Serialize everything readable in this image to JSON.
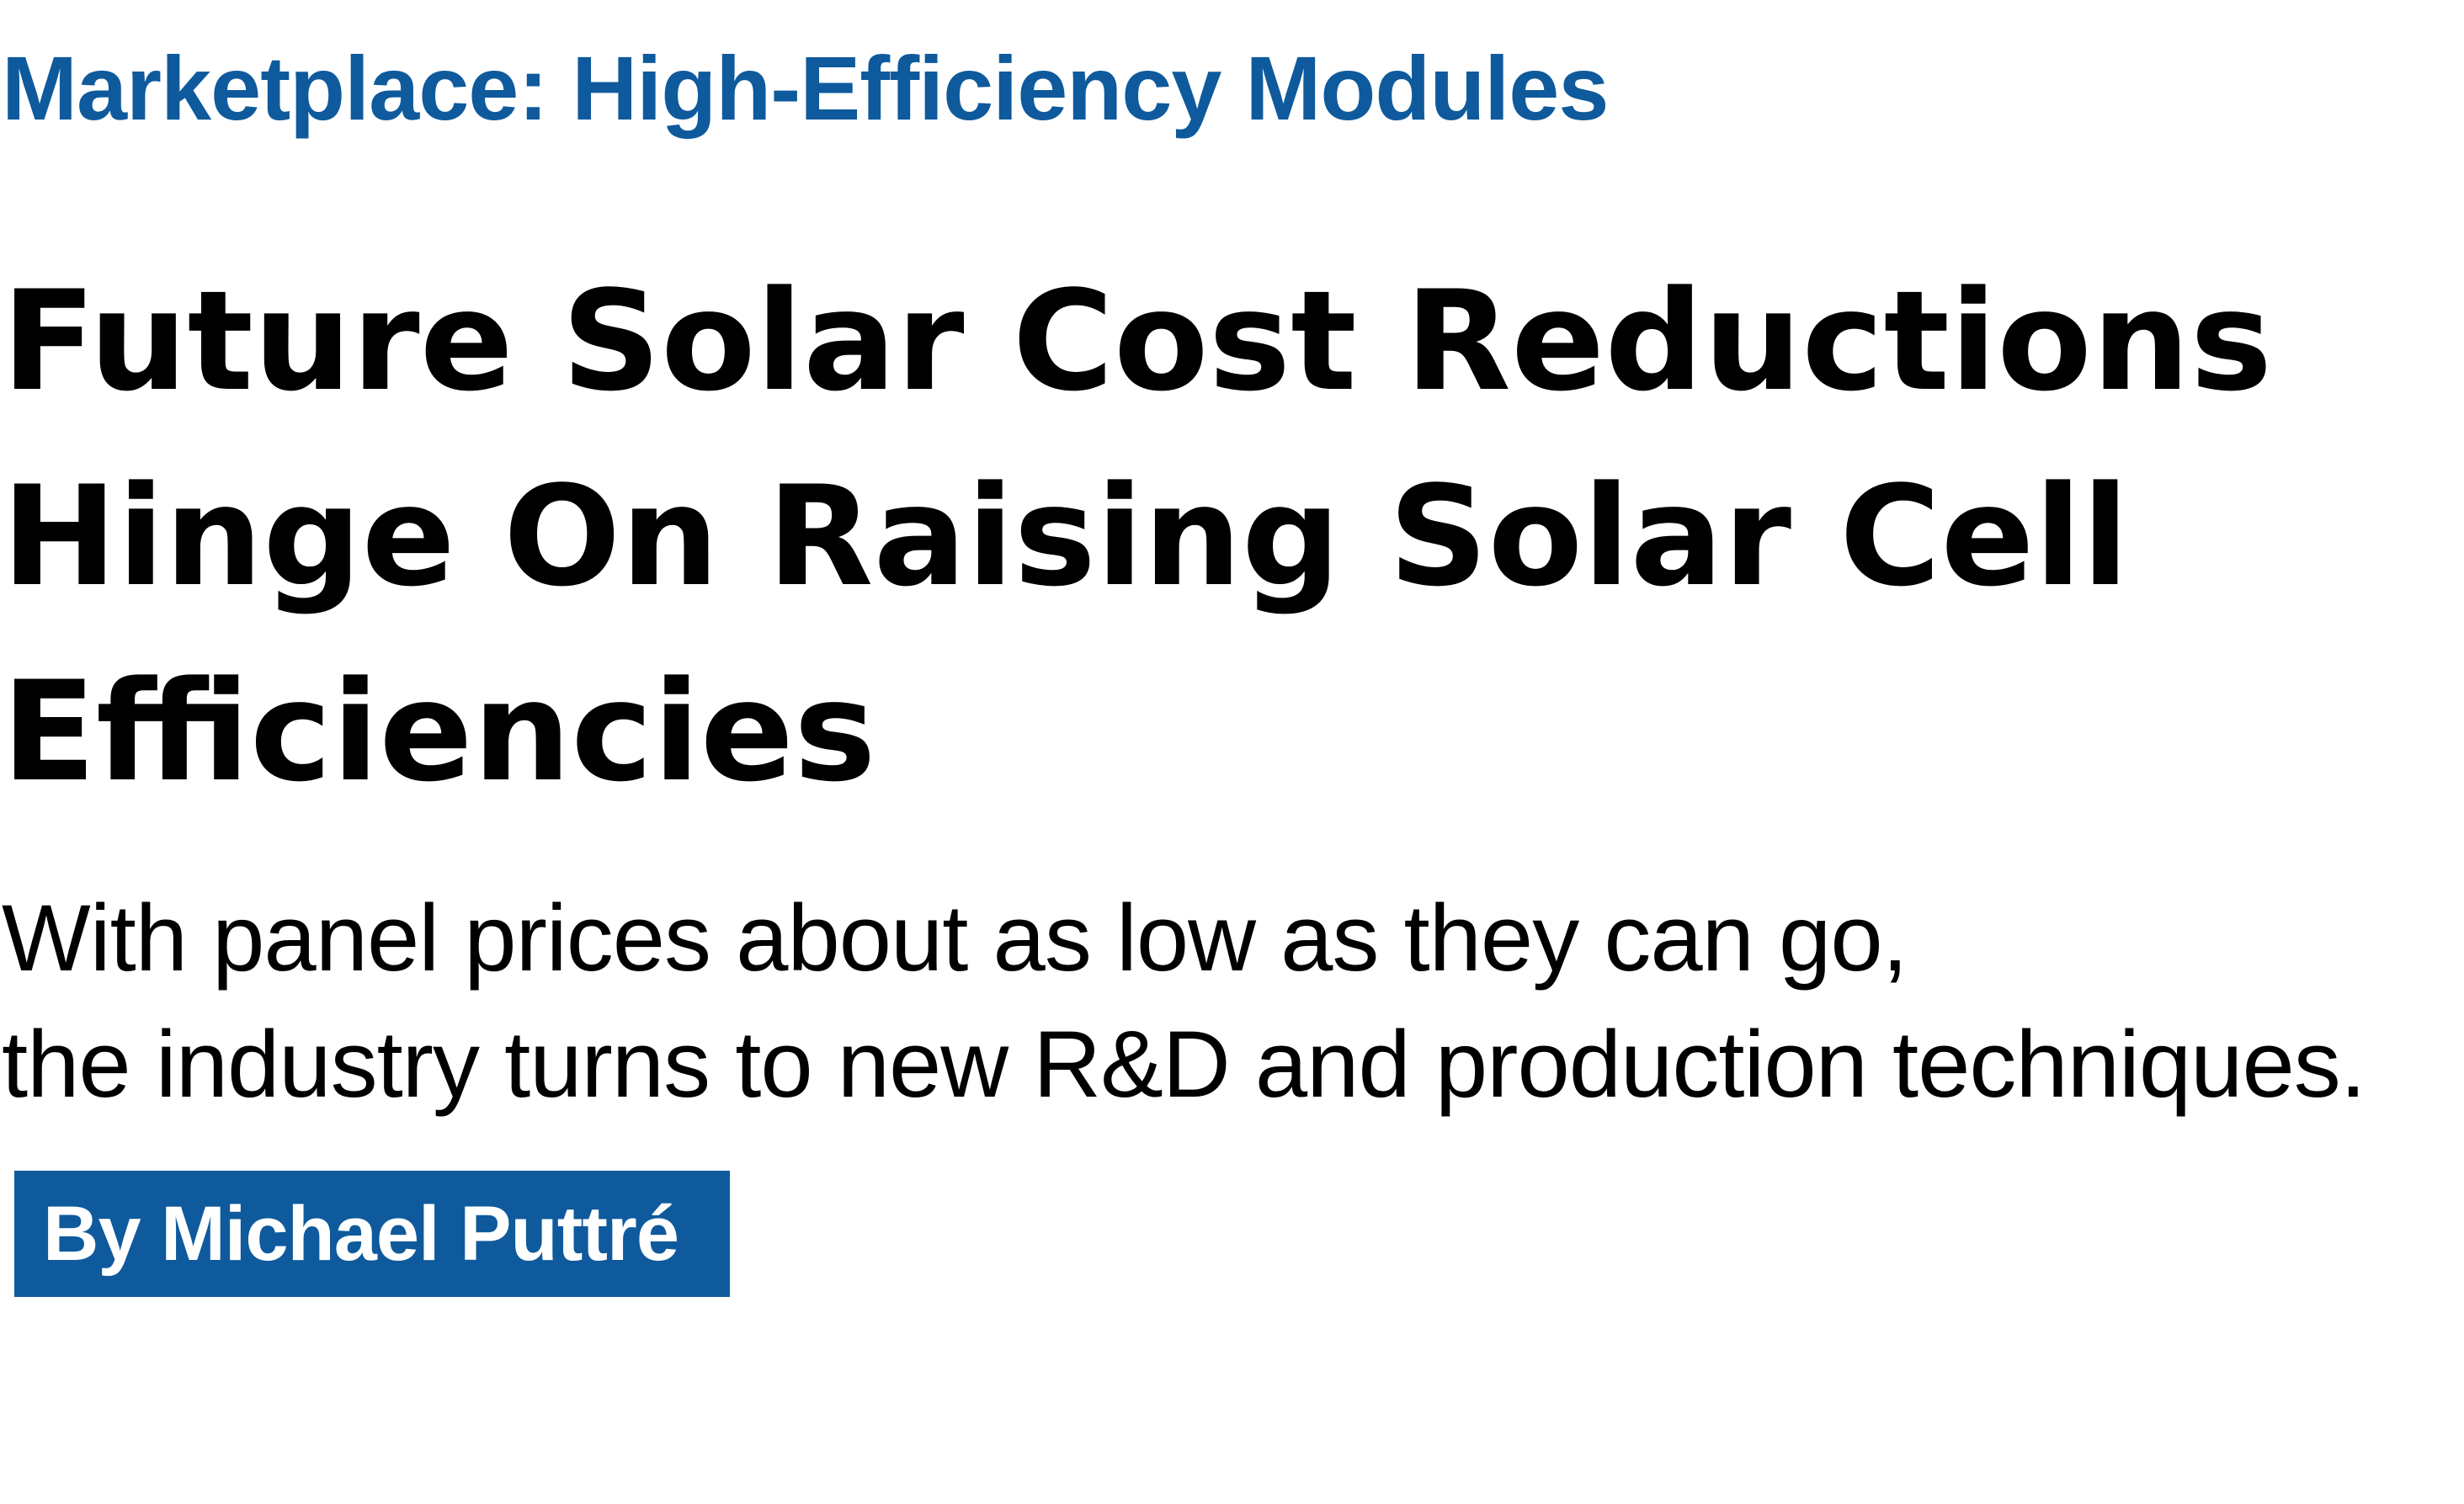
{
  "article": {
    "kicker": "Marketplace: High-Efficiency Modules",
    "headline_lines": [
      "Future Solar Cost Reductions",
      "Hinge On Raising Solar Cell",
      "Efficiencies"
    ],
    "deck_lines": [
      "With panel prices about as low as they can go,",
      "the industry turns to new R&D and production techniques."
    ],
    "byline": "By Michael Puttré"
  },
  "colors": {
    "accent": "#0e5a9c",
    "text": "#000000",
    "background": "#ffffff"
  }
}
